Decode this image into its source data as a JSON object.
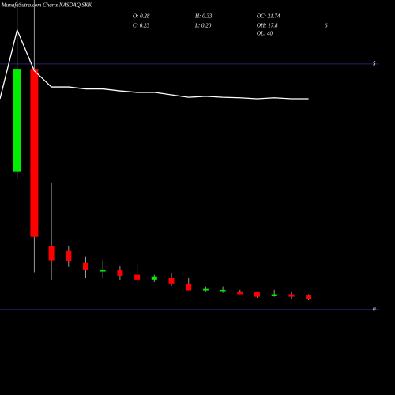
{
  "chart_data": {
    "type": "candlestick",
    "title": "MunafaSutra.com Charts NASDAQ SKK",
    "info": [
      {
        "label": "O: 0.28"
      },
      {
        "label": "C: 0.23"
      },
      {
        "label": "H: 0.33"
      },
      {
        "label": "L: 0.20"
      },
      {
        "label": "OC: 21.74"
      },
      {
        "label": "OH: 17.8"
      },
      {
        "label": "OL: 40"
      },
      {
        "label": "6"
      }
    ],
    "ylim": [
      -1.74,
      6.3
    ],
    "yticks": [
      0,
      5
    ],
    "up_color": "#00ee00",
    "down_color": "#ff0000",
    "line_color": "#ffffff",
    "grid_color": "#23236e",
    "open": [
      null,
      2.8,
      4.9,
      1.29,
      1.19,
      0.95,
      0.79,
      0.8,
      0.71,
      0.61,
      0.64,
      0.53,
      0.39,
      0.39,
      0.37,
      0.35,
      0.27,
      0.31,
      0.29
    ],
    "high": [
      null,
      6.3,
      6.3,
      2.57,
      1.29,
      1.08,
      1.01,
      0.88,
      0.93,
      0.71,
      0.74,
      0.64,
      0.47,
      0.47,
      0.4,
      0.37,
      0.4,
      0.35,
      0.31
    ],
    "low": [
      null,
      2.68,
      0.76,
      0.59,
      0.87,
      0.64,
      0.64,
      0.61,
      0.51,
      0.56,
      0.48,
      0.39,
      0.37,
      0.34,
      0.31,
      0.24,
      0.26,
      0.21,
      0.19
    ],
    "close": [
      null,
      4.9,
      1.48,
      1.0,
      0.98,
      0.8,
      0.8,
      0.69,
      0.61,
      0.66,
      0.53,
      0.39,
      0.42,
      0.4,
      0.31,
      0.26,
      0.31,
      0.26,
      0.21
    ],
    "line": [
      4.29,
      5.69,
      4.86,
      4.53,
      4.53,
      4.49,
      4.49,
      4.45,
      4.42,
      4.42,
      4.37,
      4.32,
      4.34,
      4.32,
      4.31,
      4.29,
      4.31,
      4.29,
      4.29
    ]
  }
}
